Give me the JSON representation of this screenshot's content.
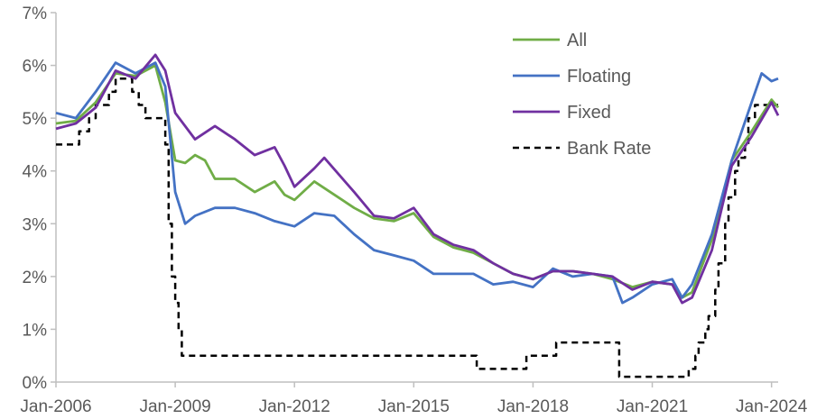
{
  "chart_data": {
    "type": "line",
    "title": "",
    "xlabel": "",
    "ylabel": "",
    "ylim": [
      0,
      7
    ],
    "yticks": [
      "0%",
      "1%",
      "2%",
      "3%",
      "4%",
      "5%",
      "6%",
      "7%"
    ],
    "xlim": [
      "2006-01",
      "2024-03"
    ],
    "xticks": [
      "Jan-2006",
      "Jan-2009",
      "Jan-2012",
      "Jan-2015",
      "Jan-2018",
      "Jan-2021",
      "Jan-2024"
    ],
    "grid": false,
    "legend_position": "top-right",
    "series": [
      {
        "name": "All",
        "color": "#70ad47",
        "dash": "solid",
        "points": [
          [
            "2006-01",
            4.9
          ],
          [
            "2006-07",
            4.95
          ],
          [
            "2007-01",
            5.3
          ],
          [
            "2007-07",
            5.85
          ],
          [
            "2008-01",
            5.8
          ],
          [
            "2008-07",
            6.0
          ],
          [
            "2008-10",
            5.3
          ],
          [
            "2009-01",
            4.2
          ],
          [
            "2009-04",
            4.15
          ],
          [
            "2009-07",
            4.3
          ],
          [
            "2009-10",
            4.2
          ],
          [
            "2010-01",
            3.85
          ],
          [
            "2010-07",
            3.85
          ],
          [
            "2011-01",
            3.6
          ],
          [
            "2011-07",
            3.8
          ],
          [
            "2011-10",
            3.55
          ],
          [
            "2012-01",
            3.45
          ],
          [
            "2012-07",
            3.8
          ],
          [
            "2013-01",
            3.55
          ],
          [
            "2013-07",
            3.3
          ],
          [
            "2014-01",
            3.1
          ],
          [
            "2014-07",
            3.05
          ],
          [
            "2015-01",
            3.2
          ],
          [
            "2015-07",
            2.75
          ],
          [
            "2016-01",
            2.55
          ],
          [
            "2016-07",
            2.45
          ],
          [
            "2017-01",
            2.25
          ],
          [
            "2017-07",
            2.05
          ],
          [
            "2018-01",
            1.95
          ],
          [
            "2018-07",
            2.1
          ],
          [
            "2019-01",
            2.1
          ],
          [
            "2019-07",
            2.05
          ],
          [
            "2020-01",
            1.95
          ],
          [
            "2020-07",
            1.8
          ],
          [
            "2021-01",
            1.9
          ],
          [
            "2021-07",
            1.85
          ],
          [
            "2021-10",
            1.6
          ],
          [
            "2022-01",
            1.7
          ],
          [
            "2022-07",
            2.7
          ],
          [
            "2023-01",
            4.2
          ],
          [
            "2023-07",
            4.75
          ],
          [
            "2024-01",
            5.35
          ],
          [
            "2024-03",
            5.2
          ]
        ]
      },
      {
        "name": "Floating",
        "color": "#4472c4",
        "dash": "solid",
        "points": [
          [
            "2006-01",
            5.1
          ],
          [
            "2006-07",
            5.0
          ],
          [
            "2007-01",
            5.5
          ],
          [
            "2007-07",
            6.05
          ],
          [
            "2008-01",
            5.85
          ],
          [
            "2008-07",
            6.05
          ],
          [
            "2008-10",
            5.6
          ],
          [
            "2009-01",
            3.6
          ],
          [
            "2009-04",
            3.0
          ],
          [
            "2009-07",
            3.15
          ],
          [
            "2010-01",
            3.3
          ],
          [
            "2010-07",
            3.3
          ],
          [
            "2011-01",
            3.2
          ],
          [
            "2011-07",
            3.05
          ],
          [
            "2012-01",
            2.95
          ],
          [
            "2012-07",
            3.2
          ],
          [
            "2013-01",
            3.15
          ],
          [
            "2013-07",
            2.8
          ],
          [
            "2014-01",
            2.5
          ],
          [
            "2014-07",
            2.4
          ],
          [
            "2015-01",
            2.3
          ],
          [
            "2015-07",
            2.05
          ],
          [
            "2016-01",
            2.05
          ],
          [
            "2016-07",
            2.05
          ],
          [
            "2017-01",
            1.85
          ],
          [
            "2017-07",
            1.9
          ],
          [
            "2018-01",
            1.8
          ],
          [
            "2018-07",
            2.15
          ],
          [
            "2019-01",
            2.0
          ],
          [
            "2019-07",
            2.05
          ],
          [
            "2020-01",
            2.0
          ],
          [
            "2020-04",
            1.5
          ],
          [
            "2020-07",
            1.6
          ],
          [
            "2021-01",
            1.85
          ],
          [
            "2021-07",
            1.95
          ],
          [
            "2021-10",
            1.6
          ],
          [
            "2022-01",
            1.85
          ],
          [
            "2022-07",
            2.8
          ],
          [
            "2023-01",
            4.2
          ],
          [
            "2023-07",
            5.3
          ],
          [
            "2023-10",
            5.85
          ],
          [
            "2024-01",
            5.7
          ],
          [
            "2024-03",
            5.75
          ]
        ]
      },
      {
        "name": "Fixed",
        "color": "#7030a0",
        "dash": "solid",
        "points": [
          [
            "2006-01",
            4.8
          ],
          [
            "2006-07",
            4.9
          ],
          [
            "2007-01",
            5.2
          ],
          [
            "2007-07",
            5.9
          ],
          [
            "2008-01",
            5.75
          ],
          [
            "2008-07",
            6.2
          ],
          [
            "2008-10",
            5.9
          ],
          [
            "2009-01",
            5.1
          ],
          [
            "2009-07",
            4.6
          ],
          [
            "2010-01",
            4.85
          ],
          [
            "2010-07",
            4.6
          ],
          [
            "2011-01",
            4.3
          ],
          [
            "2011-07",
            4.45
          ],
          [
            "2011-10",
            4.1
          ],
          [
            "2012-01",
            3.7
          ],
          [
            "2012-07",
            4.05
          ],
          [
            "2012-10",
            4.25
          ],
          [
            "2013-07",
            3.6
          ],
          [
            "2014-01",
            3.15
          ],
          [
            "2014-07",
            3.1
          ],
          [
            "2015-01",
            3.3
          ],
          [
            "2015-07",
            2.8
          ],
          [
            "2016-01",
            2.6
          ],
          [
            "2016-07",
            2.5
          ],
          [
            "2017-01",
            2.25
          ],
          [
            "2017-07",
            2.05
          ],
          [
            "2018-01",
            1.95
          ],
          [
            "2018-07",
            2.1
          ],
          [
            "2019-01",
            2.1
          ],
          [
            "2019-07",
            2.05
          ],
          [
            "2020-01",
            2.0
          ],
          [
            "2020-07",
            1.75
          ],
          [
            "2021-01",
            1.9
          ],
          [
            "2021-07",
            1.85
          ],
          [
            "2021-10",
            1.5
          ],
          [
            "2022-01",
            1.6
          ],
          [
            "2022-07",
            2.5
          ],
          [
            "2023-01",
            4.1
          ],
          [
            "2023-07",
            4.65
          ],
          [
            "2024-01",
            5.3
          ],
          [
            "2024-03",
            5.05
          ]
        ]
      },
      {
        "name": "Bank Rate",
        "color": "#000000",
        "dash": "dashed",
        "points": [
          [
            "2006-01",
            4.5
          ],
          [
            "2006-08",
            4.5
          ],
          [
            "2006-08",
            4.75
          ],
          [
            "2006-11",
            4.75
          ],
          [
            "2006-11",
            5.0
          ],
          [
            "2007-01",
            5.0
          ],
          [
            "2007-01",
            5.25
          ],
          [
            "2007-05",
            5.25
          ],
          [
            "2007-05",
            5.5
          ],
          [
            "2007-07",
            5.5
          ],
          [
            "2007-07",
            5.75
          ],
          [
            "2007-12",
            5.75
          ],
          [
            "2007-12",
            5.5
          ],
          [
            "2008-02",
            5.5
          ],
          [
            "2008-02",
            5.25
          ],
          [
            "2008-04",
            5.25
          ],
          [
            "2008-04",
            5.0
          ],
          [
            "2008-10",
            5.0
          ],
          [
            "2008-10",
            4.5
          ],
          [
            "2008-11",
            4.5
          ],
          [
            "2008-11",
            3.0
          ],
          [
            "2008-12",
            3.0
          ],
          [
            "2008-12",
            2.0
          ],
          [
            "2009-01",
            2.0
          ],
          [
            "2009-01",
            1.5
          ],
          [
            "2009-02",
            1.5
          ],
          [
            "2009-02",
            1.0
          ],
          [
            "2009-03",
            1.0
          ],
          [
            "2009-03",
            0.5
          ],
          [
            "2016-08",
            0.5
          ],
          [
            "2016-08",
            0.25
          ],
          [
            "2017-11",
            0.25
          ],
          [
            "2017-11",
            0.5
          ],
          [
            "2018-08",
            0.5
          ],
          [
            "2018-08",
            0.75
          ],
          [
            "2020-03",
            0.75
          ],
          [
            "2020-03",
            0.1
          ],
          [
            "2021-12",
            0.1
          ],
          [
            "2021-12",
            0.25
          ],
          [
            "2022-02",
            0.25
          ],
          [
            "2022-02",
            0.5
          ],
          [
            "2022-03",
            0.5
          ],
          [
            "2022-03",
            0.75
          ],
          [
            "2022-05",
            0.75
          ],
          [
            "2022-05",
            1.0
          ],
          [
            "2022-06",
            1.0
          ],
          [
            "2022-06",
            1.25
          ],
          [
            "2022-08",
            1.25
          ],
          [
            "2022-08",
            1.75
          ],
          [
            "2022-09",
            1.75
          ],
          [
            "2022-09",
            2.25
          ],
          [
            "2022-11",
            2.25
          ],
          [
            "2022-11",
            3.0
          ],
          [
            "2022-12",
            3.0
          ],
          [
            "2022-12",
            3.5
          ],
          [
            "2023-02",
            3.5
          ],
          [
            "2023-02",
            4.0
          ],
          [
            "2023-03",
            4.0
          ],
          [
            "2023-03",
            4.25
          ],
          [
            "2023-05",
            4.25
          ],
          [
            "2023-05",
            4.5
          ],
          [
            "2023-06",
            4.5
          ],
          [
            "2023-06",
            5.0
          ],
          [
            "2023-08",
            5.0
          ],
          [
            "2023-08",
            5.25
          ],
          [
            "2024-03",
            5.25
          ]
        ]
      }
    ]
  }
}
